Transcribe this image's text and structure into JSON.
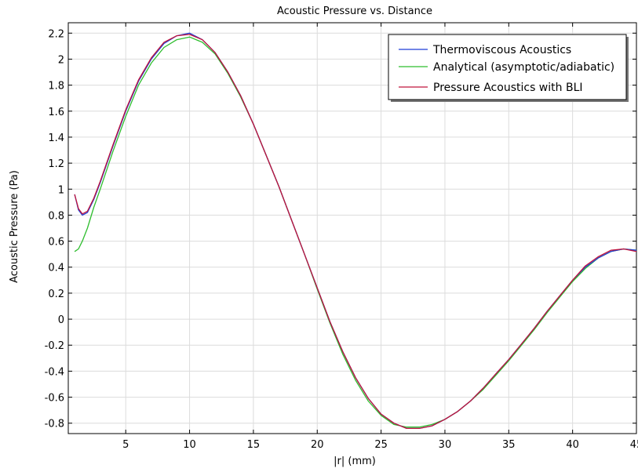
{
  "chart_data": {
    "type": "line",
    "title": "Acoustic Pressure vs. Distance",
    "xlabel": "|r| (mm)",
    "ylabel": "Acoustic Pressure (Pa)",
    "xlim": [
      0.5,
      45
    ],
    "ylim": [
      -0.88,
      2.28
    ],
    "xticks": [
      5,
      10,
      15,
      20,
      25,
      30,
      35,
      40,
      45
    ],
    "xtick_labels": [
      "5",
      "10",
      "15",
      "20",
      "25",
      "30",
      "35",
      "40",
      "45"
    ],
    "yticks": [
      -0.8,
      -0.6,
      -0.4,
      -0.2,
      0,
      0.2,
      0.4,
      0.6,
      0.8,
      1,
      1.2,
      1.4,
      1.6,
      1.8,
      2,
      2.2
    ],
    "ytick_labels": [
      "-0.8",
      "-0.6",
      "-0.4",
      "-0.2",
      "0",
      "0.2",
      "0.4",
      "0.6",
      "0.8",
      "1",
      "1.2",
      "1.4",
      "1.6",
      "1.8",
      "2",
      "2.2"
    ],
    "grid": true,
    "legend_position": "top-right",
    "series": [
      {
        "name": "Thermoviscous Acoustics",
        "color": "#1f3fd6",
        "x": [
          1,
          1.3,
          1.6,
          2,
          2.5,
          3,
          4,
          5,
          6,
          7,
          8,
          9,
          10,
          11,
          12,
          13,
          14,
          15,
          16,
          17,
          18,
          19,
          20,
          21,
          22,
          23,
          24,
          25,
          26,
          27,
          28,
          29,
          30,
          31,
          32,
          33,
          34,
          35,
          36,
          37,
          38,
          39,
          40,
          41,
          42,
          43,
          44,
          45
        ],
        "y": [
          0.96,
          0.84,
          0.8,
          0.82,
          0.92,
          1.05,
          1.33,
          1.6,
          1.83,
          2.0,
          2.12,
          2.18,
          2.2,
          2.15,
          2.05,
          1.9,
          1.72,
          1.5,
          1.26,
          1.02,
          0.76,
          0.5,
          0.24,
          -0.02,
          -0.25,
          -0.45,
          -0.61,
          -0.73,
          -0.8,
          -0.84,
          -0.84,
          -0.82,
          -0.77,
          -0.71,
          -0.63,
          -0.53,
          -0.42,
          -0.31,
          -0.19,
          -0.07,
          0.06,
          0.18,
          0.3,
          0.4,
          0.47,
          0.52,
          0.54,
          0.53
        ]
      },
      {
        "name": "Analytical (asymptotic/adiabatic)",
        "color": "#2ebd2e",
        "x": [
          1,
          1.3,
          1.6,
          2,
          2.5,
          3,
          4,
          5,
          6,
          7,
          8,
          9,
          10,
          11,
          12,
          13,
          14,
          15,
          16,
          17,
          18,
          19,
          20,
          21,
          22,
          23,
          24,
          25,
          26,
          27,
          28,
          29,
          30,
          31,
          32,
          33,
          34,
          35,
          36,
          37,
          38,
          39,
          40,
          41,
          42,
          43,
          44,
          45
        ],
        "y": [
          0.52,
          0.54,
          0.6,
          0.7,
          0.86,
          1.0,
          1.29,
          1.56,
          1.8,
          1.97,
          2.09,
          2.15,
          2.17,
          2.13,
          2.04,
          1.89,
          1.71,
          1.5,
          1.26,
          1.02,
          0.76,
          0.5,
          0.23,
          -0.03,
          -0.27,
          -0.47,
          -0.63,
          -0.74,
          -0.81,
          -0.83,
          -0.83,
          -0.81,
          -0.77,
          -0.71,
          -0.63,
          -0.54,
          -0.43,
          -0.32,
          -0.2,
          -0.08,
          0.05,
          0.17,
          0.29,
          0.39,
          0.47,
          0.52,
          0.54,
          0.53
        ]
      },
      {
        "name": "Pressure Acoustics with BLI",
        "color": "#c0143c",
        "x": [
          1,
          1.3,
          1.6,
          2,
          2.5,
          3,
          4,
          5,
          6,
          7,
          8,
          9,
          10,
          11,
          12,
          13,
          14,
          15,
          16,
          17,
          18,
          19,
          20,
          21,
          22,
          23,
          24,
          25,
          26,
          27,
          28,
          29,
          30,
          31,
          32,
          33,
          34,
          35,
          36,
          37,
          38,
          39,
          40,
          41,
          42,
          43,
          44,
          45
        ],
        "y": [
          0.96,
          0.85,
          0.81,
          0.83,
          0.93,
          1.06,
          1.34,
          1.61,
          1.84,
          2.01,
          2.13,
          2.18,
          2.19,
          2.15,
          2.05,
          1.9,
          1.72,
          1.5,
          1.26,
          1.02,
          0.76,
          0.5,
          0.24,
          -0.02,
          -0.25,
          -0.45,
          -0.61,
          -0.73,
          -0.8,
          -0.84,
          -0.84,
          -0.82,
          -0.77,
          -0.71,
          -0.63,
          -0.53,
          -0.42,
          -0.31,
          -0.19,
          -0.07,
          0.06,
          0.18,
          0.3,
          0.41,
          0.48,
          0.53,
          0.54,
          0.52
        ]
      }
    ]
  }
}
